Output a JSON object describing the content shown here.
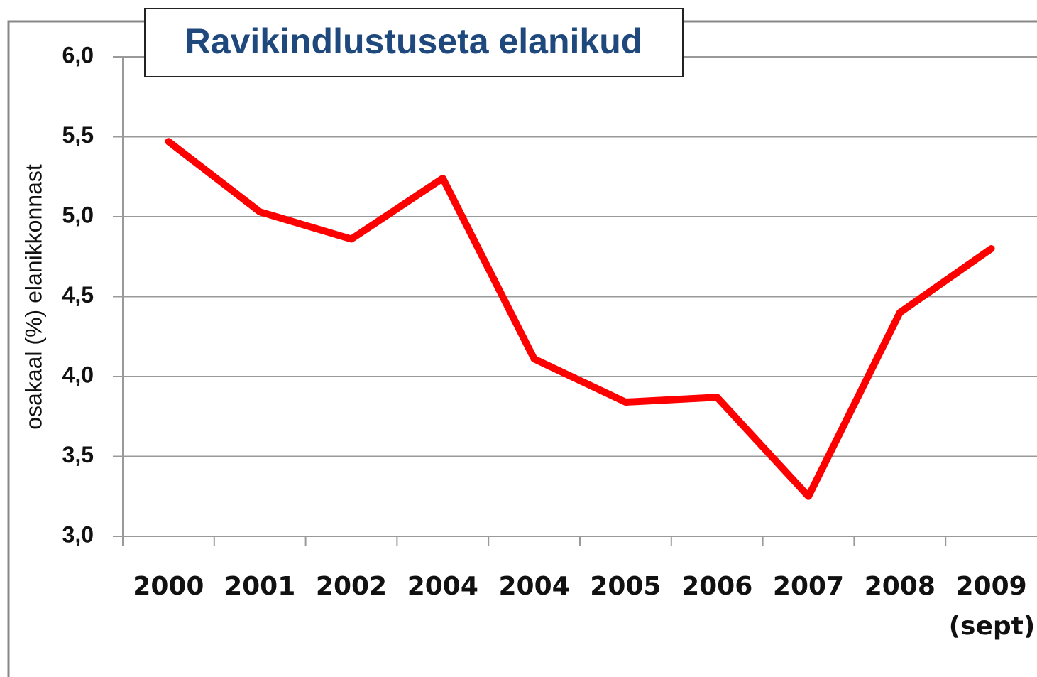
{
  "chart_data": {
    "type": "line",
    "title": "Ravikindlustuseta elanikud",
    "y_label": "osakaal (%) elanikkonnast",
    "categories": [
      "2000",
      "2001",
      "2002",
      "2004",
      "2004",
      "2005",
      "2006",
      "2007",
      "2008",
      "2009 (sept)"
    ],
    "series": [
      {
        "name": "osakaal",
        "color": "#ff0000",
        "values": [
          5.47,
          5.03,
          4.86,
          5.24,
          4.11,
          3.84,
          3.87,
          3.25,
          4.4,
          4.8
        ]
      }
    ],
    "ylim": [
      3.0,
      6.0
    ],
    "yticks": [
      {
        "value": 3.0,
        "label": "3,0"
      },
      {
        "value": 3.5,
        "label": "3,5"
      },
      {
        "value": 4.0,
        "label": "4,0"
      },
      {
        "value": 4.5,
        "label": "4,5"
      },
      {
        "value": 5.0,
        "label": "5,0"
      },
      {
        "value": 5.5,
        "label": "5,5"
      },
      {
        "value": 6.0,
        "label": "6,0"
      }
    ],
    "grid": true
  }
}
